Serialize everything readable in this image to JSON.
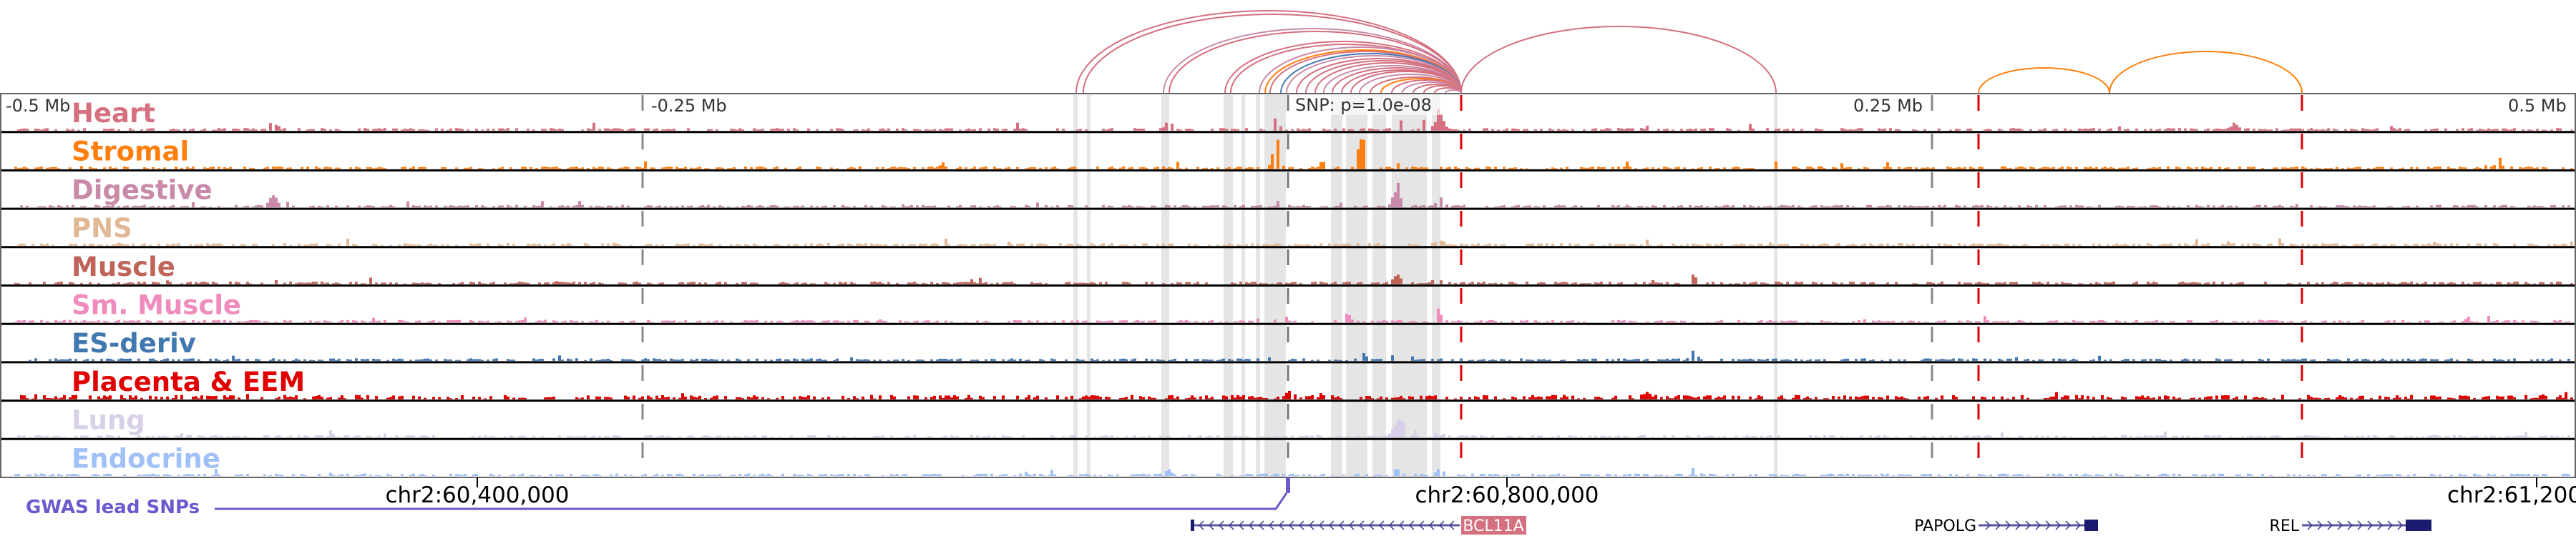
{
  "tracks": [
    {
      "name": "Heart",
      "color": "#d4707f"
    },
    {
      "name": "Stromal",
      "color": "#ff7f0e"
    },
    {
      "name": "Digestive",
      "color": "#c88aa8"
    },
    {
      "name": "PNS",
      "color": "#e0b896"
    },
    {
      "name": "Muscle",
      "color": "#c0645a"
    },
    {
      "name": "Sm. Muscle",
      "color": "#f08bbd"
    },
    {
      "name": "ES-deriv",
      "color": "#4278b0"
    },
    {
      "name": "Placenta & EEM",
      "color": "#e00000"
    },
    {
      "name": "Lung",
      "color": "#d8d0e8"
    },
    {
      "name": "Endocrine",
      "color": "#a0c0f8"
    }
  ],
  "axis": {
    "offset_labels": [
      "-0.5 Mb",
      "-0.25 Mb",
      "0.25 Mb",
      "0.5 Mb"
    ],
    "snp_label": "SNP: p=1.0e-08",
    "coordinates": [
      "chr2:60,400,000",
      "chr2:60,800,000",
      "chr2:61,200"
    ]
  },
  "gwas": {
    "label": "GWAS lead SNPs",
    "color": "#6a5acd"
  },
  "genes": [
    {
      "name": "BCL11A",
      "strand": "-",
      "highlight": "#d4707f"
    },
    {
      "name": "PAPOLG",
      "strand": "+"
    },
    {
      "name": "REL",
      "strand": "+"
    }
  ],
  "colors": {
    "arc_main": "#d4707f",
    "arc_alt": "#ff7f0e",
    "highlight_band": "#e5e5e5",
    "boundary": "#e00000",
    "gene": "#1a1a6e"
  }
}
